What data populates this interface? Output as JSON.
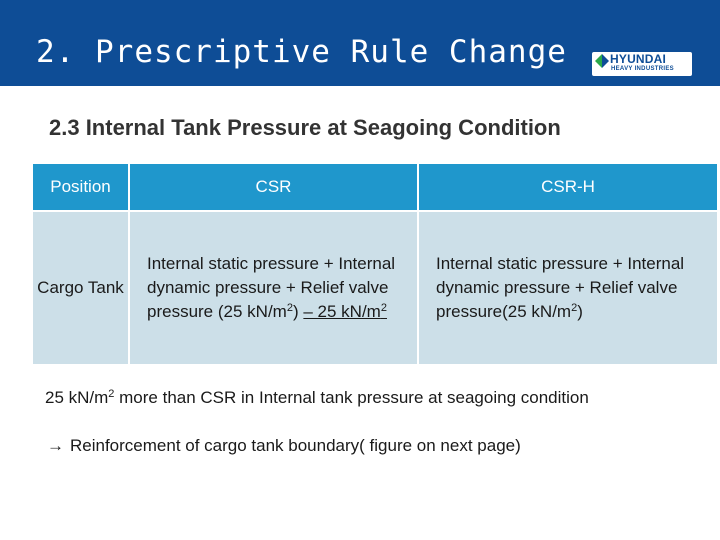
{
  "header": {
    "title": "2. Prescriptive Rule Change",
    "logo_line1": "HYUNDAI",
    "logo_line2": "HEAVY INDUSTRIES",
    "icon": "hyundai-logo-icon",
    "background_color": "#0e4d96"
  },
  "subtitle": "2.3 Internal Tank Pressure at Seagoing Condition",
  "table": {
    "header_color": "#1f97cc",
    "cell_color": "#ccdfe8",
    "columns": [
      "Position",
      "CSR",
      "CSR-H"
    ],
    "row": {
      "position": "Cargo Tank",
      "csr": {
        "text": "Internal static pressure + Internal dynamic pressure + Relief valve pressure (25 k",
        "unit1_base": "N/m",
        "unit1_exp": "2",
        "close_paren": ")",
        "addition": "– 25 kN/m",
        "addition_exp": "2"
      },
      "csr_h": {
        "text": "Internal static pressure + Internal dynamic pressure + Relief valve pressure(25 kN/m",
        "unit_exp": "2",
        "close_paren": ")"
      }
    }
  },
  "note": {
    "value": "25 kN/m",
    "exp": "2",
    "rest": " more than CSR in Internal tank pressure at seagoing condition"
  },
  "consequence": {
    "arrow": "→",
    "text": "Reinforcement of cargo tank boundary( figure on next page)"
  }
}
